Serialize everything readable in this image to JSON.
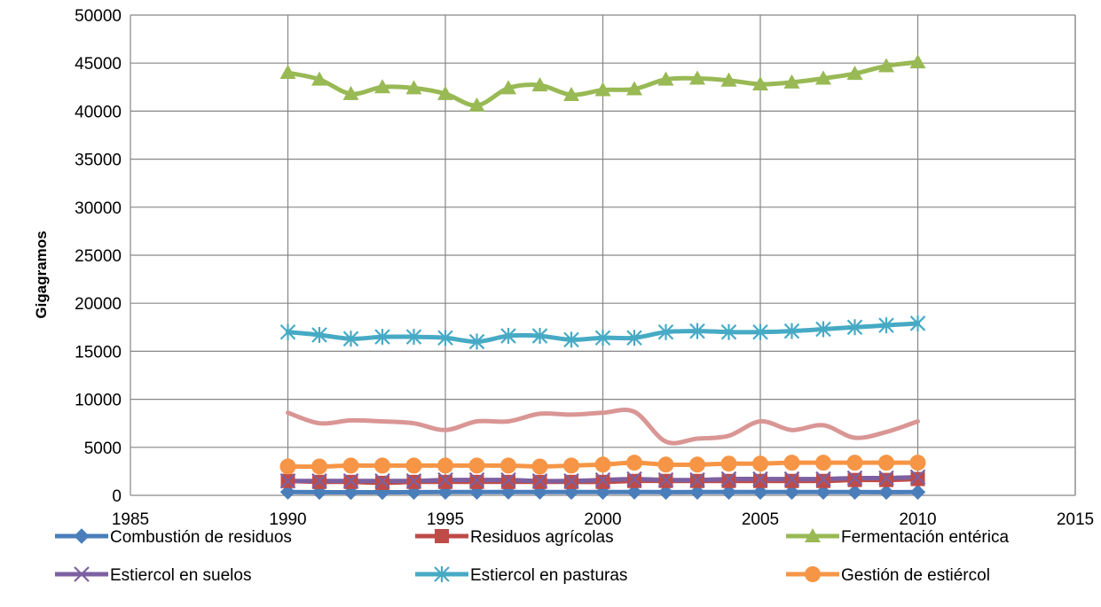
{
  "chart_data": {
    "type": "line",
    "title": "",
    "xlabel": "",
    "ylabel": "Gigagramos",
    "xlim": [
      1985,
      2015
    ],
    "ylim": [
      0,
      50000
    ],
    "x_ticks": [
      1985,
      1990,
      1995,
      2000,
      2005,
      2010,
      2015
    ],
    "y_ticks": [
      0,
      5000,
      10000,
      15000,
      20000,
      25000,
      30000,
      35000,
      40000,
      45000,
      50000
    ],
    "grid": true,
    "legend_position": "bottom",
    "x": [
      1990,
      1991,
      1992,
      1993,
      1994,
      1995,
      1996,
      1997,
      1998,
      1999,
      2000,
      2001,
      2002,
      2003,
      2004,
      2005,
      2006,
      2007,
      2008,
      2009,
      2010
    ],
    "series": [
      {
        "name": "Combustión de residuos",
        "color": "#4A7EBB",
        "marker": "diamond",
        "values": [
          350,
          330,
          320,
          320,
          330,
          340,
          340,
          350,
          350,
          340,
          340,
          350,
          330,
          340,
          340,
          340,
          340,
          340,
          340,
          330,
          340
        ]
      },
      {
        "name": "Residuos agrícolas",
        "color": "#BE4B48",
        "marker": "square",
        "values": [
          1500,
          1400,
          1400,
          1300,
          1400,
          1400,
          1400,
          1400,
          1400,
          1400,
          1400,
          1500,
          1500,
          1500,
          1500,
          1500,
          1500,
          1500,
          1600,
          1600,
          1700
        ]
      },
      {
        "name": "Fermentación entérica",
        "color": "#98B954",
        "marker": "triangle",
        "values": [
          44000,
          43300,
          41800,
          42500,
          42400,
          41800,
          40600,
          42400,
          42700,
          41700,
          42200,
          42300,
          43300,
          43400,
          43200,
          42800,
          43000,
          43400,
          43900,
          44700,
          45100
        ]
      },
      {
        "name": "Estiercol en suelos",
        "color": "#7D60A0",
        "marker": "x",
        "values": [
          1500,
          1500,
          1500,
          1500,
          1500,
          1600,
          1600,
          1600,
          1500,
          1500,
          1600,
          1700,
          1600,
          1600,
          1700,
          1700,
          1700,
          1700,
          1800,
          1800,
          1900
        ]
      },
      {
        "name": "Estiercol en pasturas",
        "color": "#46AAC5",
        "marker": "star",
        "values": [
          17000,
          16700,
          16300,
          16500,
          16500,
          16400,
          16000,
          16600,
          16600,
          16200,
          16400,
          16400,
          17000,
          17100,
          17000,
          17000,
          17100,
          17300,
          17500,
          17700,
          17900
        ]
      },
      {
        "name": "Gestión de estiércol",
        "color": "#F69545",
        "marker": "circle",
        "values": [
          3000,
          3000,
          3100,
          3100,
          3100,
          3100,
          3100,
          3100,
          3000,
          3100,
          3200,
          3400,
          3200,
          3200,
          3300,
          3300,
          3400,
          3400,
          3400,
          3400,
          3400
        ]
      },
      {
        "name": "",
        "color": "#D99694",
        "marker": "none",
        "values": [
          8600,
          7500,
          7800,
          7700,
          7500,
          6800,
          7700,
          7700,
          8500,
          8400,
          8600,
          8700,
          5600,
          5900,
          6200,
          7700,
          6800,
          7300,
          6000,
          6600,
          7700
        ]
      }
    ]
  }
}
